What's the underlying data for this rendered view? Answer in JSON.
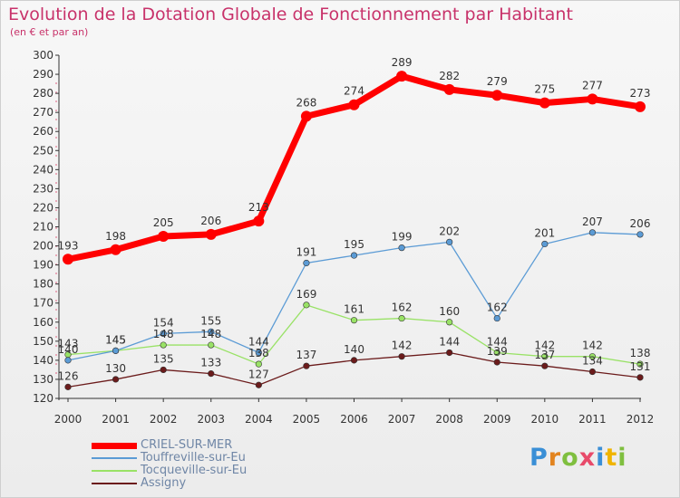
{
  "header": {
    "title": "Evolution de la Dotation Globale de Fonctionnement par Habitant",
    "subtitle": "(en € et par an)"
  },
  "logo": {
    "text": "Proxiti"
  },
  "colors": {
    "title": "#c8326a",
    "CRIEL-SUR-MER": "#ff0000",
    "Touffreville-sur-Eu": "#5b9bd5",
    "Tocqueville-sur-Eu": "#99e266",
    "Assigny": "#6b1b1b"
  },
  "chart_data": {
    "type": "line",
    "title": "Evolution de la Dotation Globale de Fonctionnement par Habitant",
    "subtitle": "(en € et par an)",
    "categories": [
      "2000",
      "2001",
      "2002",
      "2003",
      "2004",
      "2005",
      "2006",
      "2007",
      "2008",
      "2009",
      "2010",
      "2011",
      "2012"
    ],
    "ylim": [
      120,
      300
    ],
    "ytick_step": 10,
    "grid": false,
    "legend_position": "bottom-left",
    "series": [
      {
        "name": "CRIEL-SUR-MER",
        "values": [
          193,
          198,
          205,
          206,
          213,
          268,
          274,
          289,
          282,
          279,
          275,
          277,
          273
        ]
      },
      {
        "name": "Touffreville-sur-Eu",
        "values": [
          140,
          145,
          154,
          155,
          144,
          191,
          195,
          199,
          202,
          162,
          201,
          207,
          206
        ]
      },
      {
        "name": "Tocqueville-sur-Eu",
        "values": [
          143,
          145,
          148,
          148,
          138,
          169,
          161,
          162,
          160,
          144,
          142,
          142,
          138
        ]
      },
      {
        "name": "Assigny",
        "values": [
          126,
          130,
          135,
          133,
          127,
          137,
          140,
          142,
          144,
          139,
          137,
          134,
          131
        ]
      }
    ]
  }
}
